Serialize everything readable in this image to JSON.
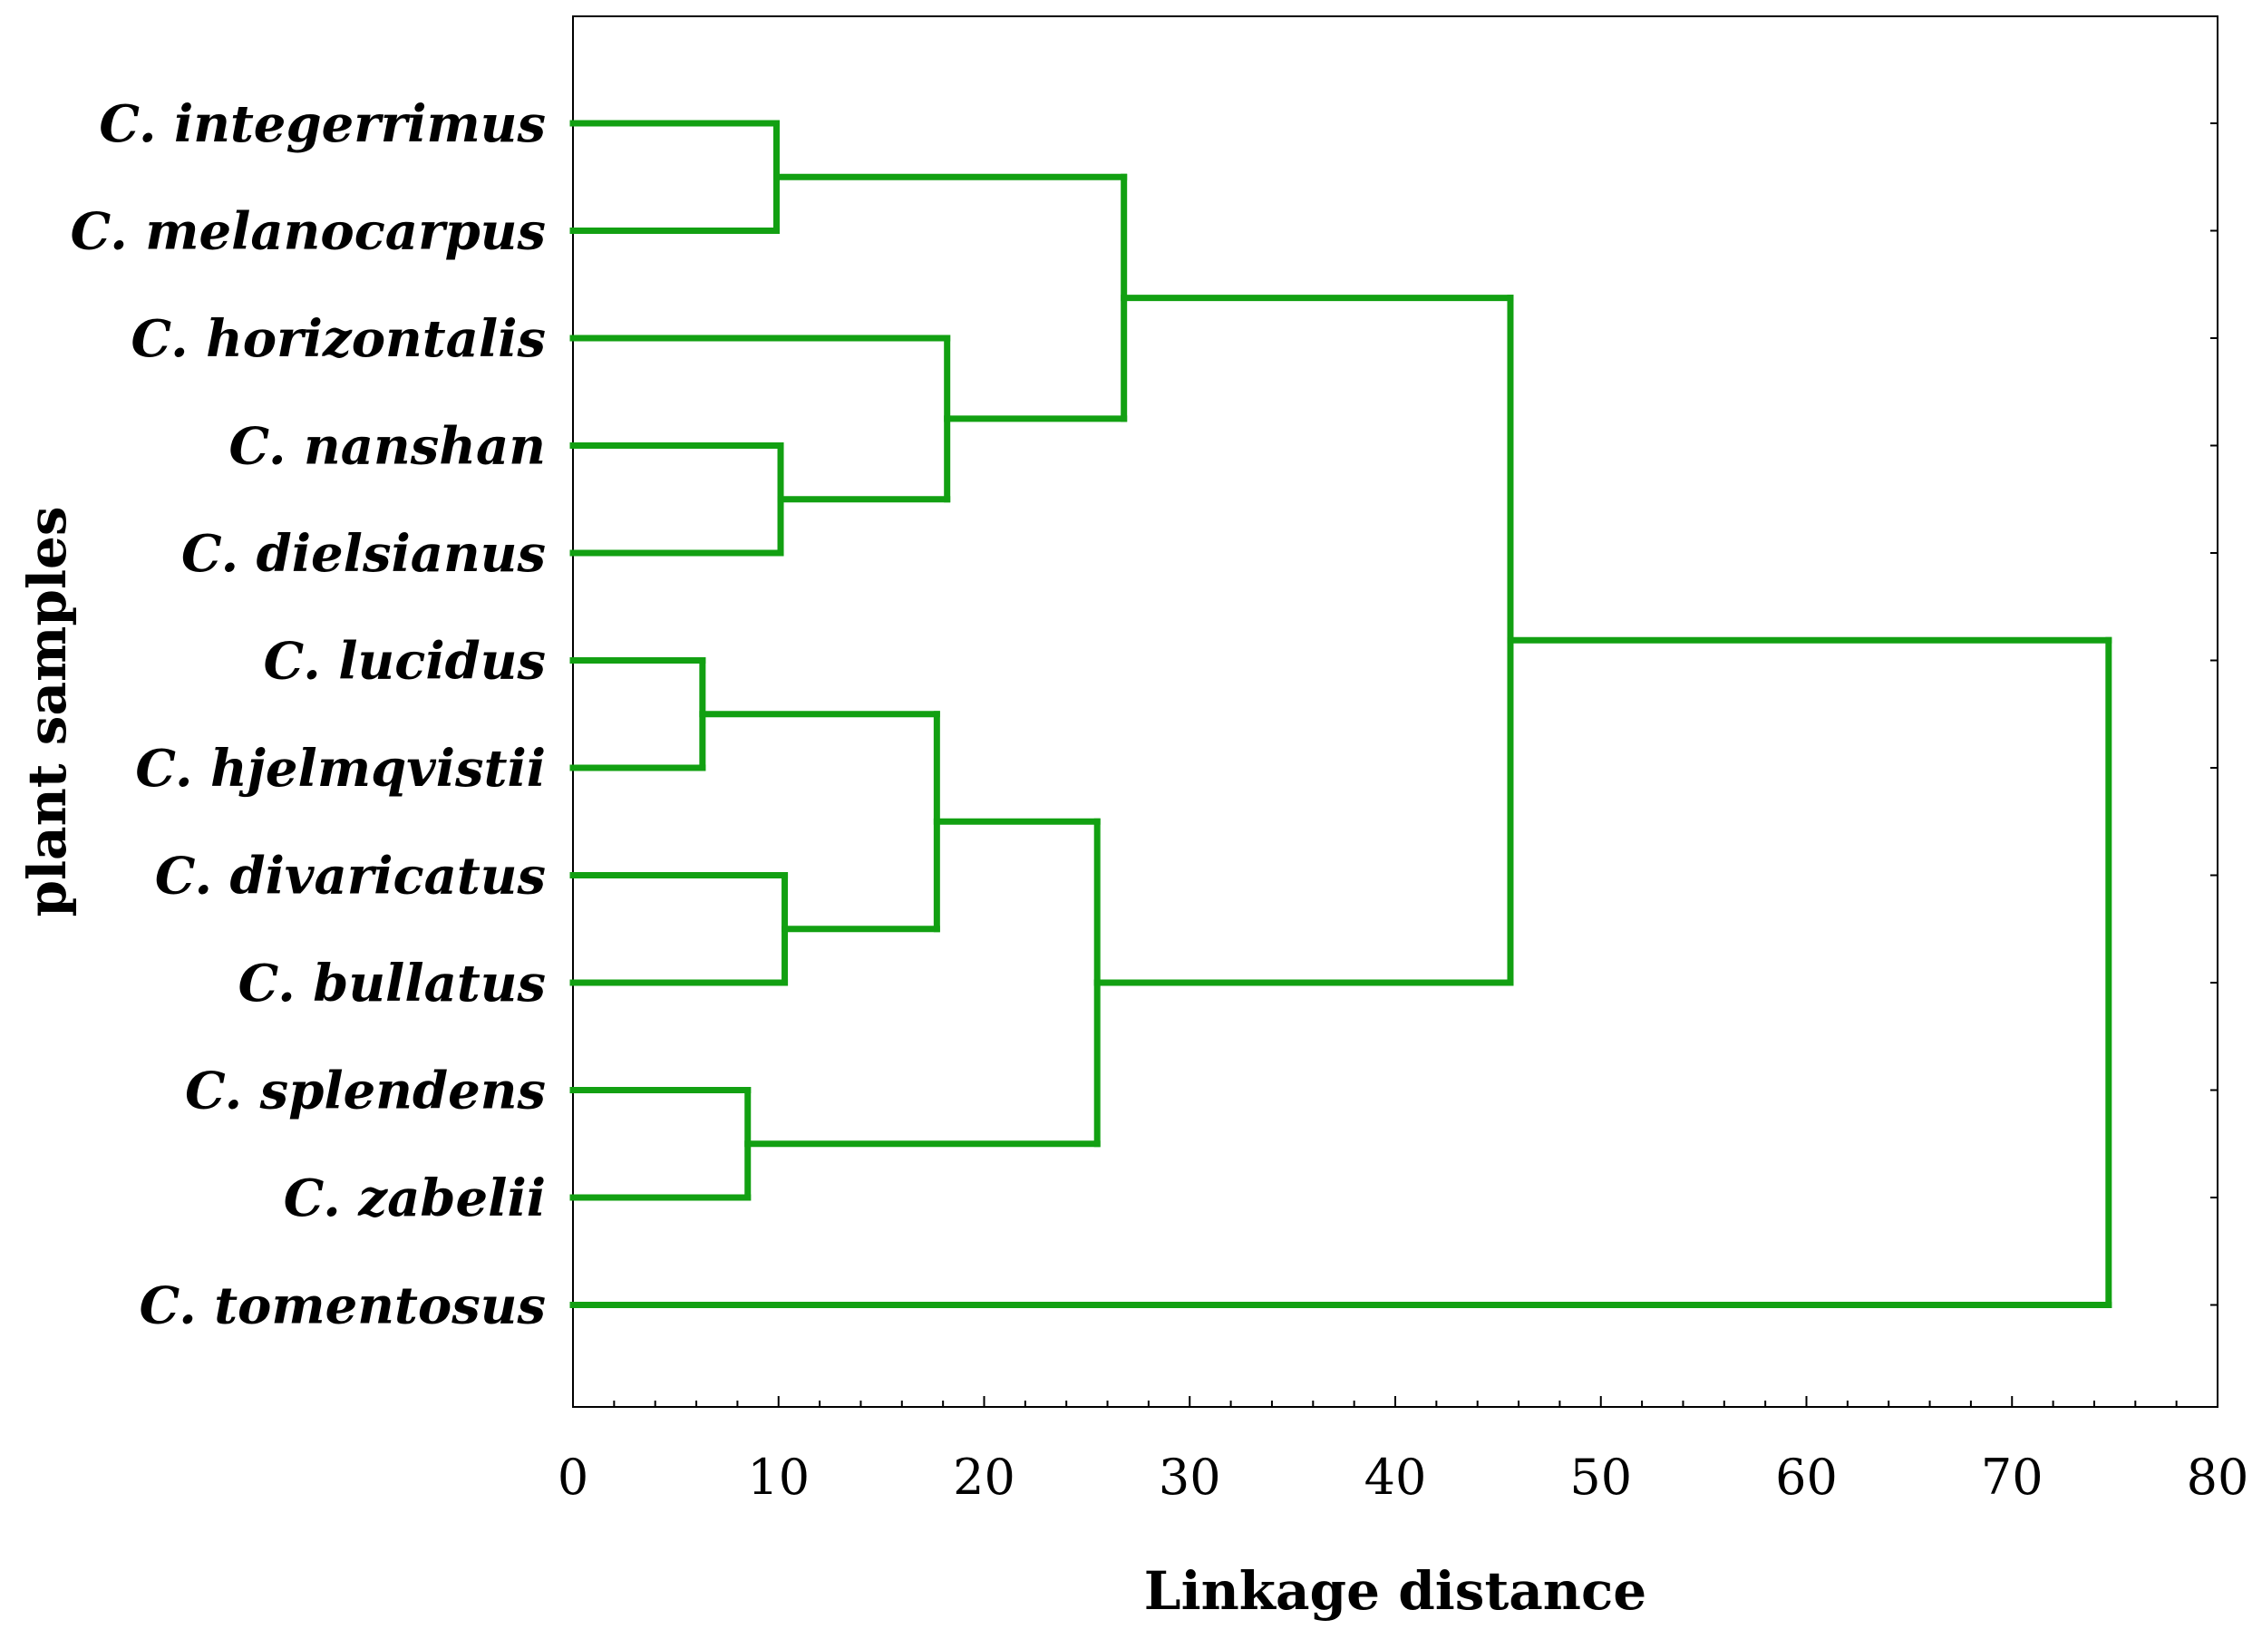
{
  "chart_data": {
    "type": "dendrogram",
    "orientation": "horizontal",
    "xlabel": "Linkage distance",
    "ylabel": "plant samples",
    "xlim": [
      0,
      80
    ],
    "x_ticks": [
      0,
      10,
      20,
      30,
      40,
      50,
      60,
      70,
      80
    ],
    "x_minor_step": 2,
    "grid": false,
    "line_color": "#12a012",
    "leaves": [
      "C. integerrimus",
      "C. melanocarpus",
      "C. horizontalis",
      "C. nanshan",
      "C. dielsianus",
      "C. lucidus",
      "C. hjelmqvistii",
      "C. divaricatus",
      "C. bullatus",
      "C. splendens",
      "C. zabelii",
      "C. tomentosus"
    ],
    "merges": [
      {
        "id": "A",
        "children": [
          "C. integerrimus",
          "C. melanocarpus"
        ],
        "height": 9.9
      },
      {
        "id": "B",
        "children": [
          "C. nanshan",
          "C. dielsianus"
        ],
        "height": 10.1
      },
      {
        "id": "C",
        "children": [
          "C. horizontalis",
          "B"
        ],
        "height": 18.2
      },
      {
        "id": "D",
        "children": [
          "A",
          "C"
        ],
        "height": 26.8
      },
      {
        "id": "E",
        "children": [
          "C. lucidus",
          "C. hjelmqvistii"
        ],
        "height": 6.3
      },
      {
        "id": "F",
        "children": [
          "C. divaricatus",
          "C. bullatus"
        ],
        "height": 10.3
      },
      {
        "id": "G",
        "children": [
          "E",
          "F"
        ],
        "height": 17.7
      },
      {
        "id": "H",
        "children": [
          "C. splendens",
          "C. zabelii"
        ],
        "height": 8.5
      },
      {
        "id": "I",
        "children": [
          "G",
          "H"
        ],
        "height": 25.5
      },
      {
        "id": "J",
        "children": [
          "D",
          "I"
        ],
        "height": 45.6
      },
      {
        "id": "K",
        "children": [
          "J",
          "C. tomentosus"
        ],
        "height": 74.7
      }
    ]
  }
}
